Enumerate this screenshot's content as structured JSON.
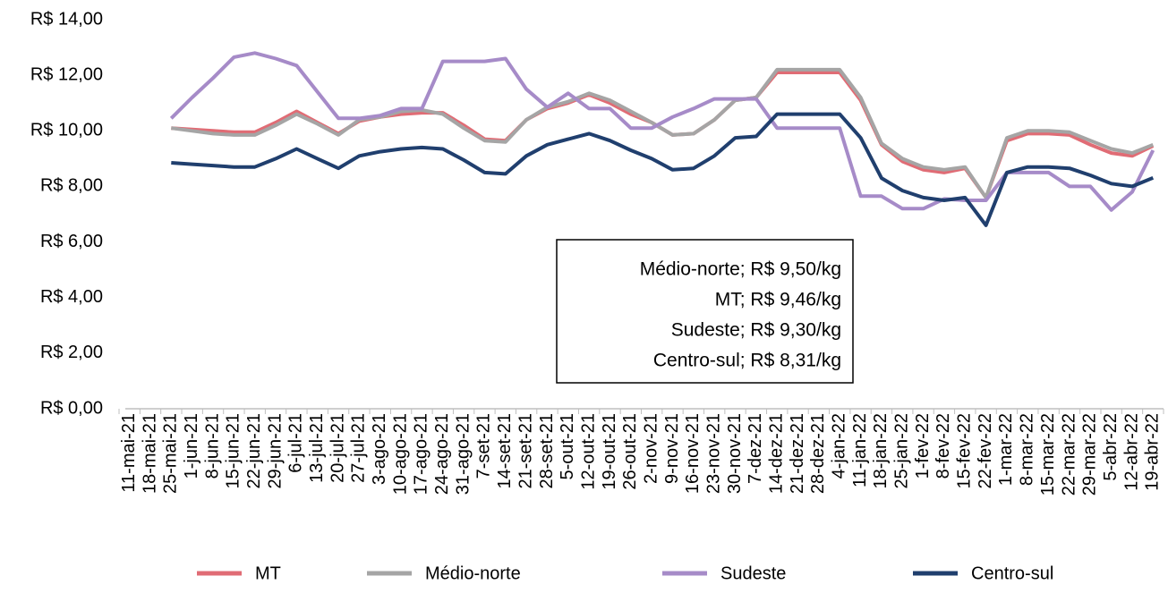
{
  "chart_data": {
    "type": "line",
    "categories": [
      "11-mai-21",
      "18-mai-21",
      "25-mai-21",
      "1-jun-21",
      "8-jun-21",
      "15-jun-21",
      "22-jun-21",
      "29-jun-21",
      "6-jul-21",
      "13-jul-21",
      "20-jul-21",
      "27-jul-21",
      "3-ago-21",
      "10-ago-21",
      "17-ago-21",
      "24-ago-21",
      "31-ago-21",
      "7-set-21",
      "14-set-21",
      "21-set-21",
      "28-set-21",
      "5-out-21",
      "12-out-21",
      "19-out-21",
      "26-out-21",
      "2-nov-21",
      "9-nov-21",
      "16-nov-21",
      "23-nov-21",
      "30-nov-21",
      "7-dez-21",
      "14-dez-21",
      "21-dez-21",
      "28-dez-21",
      "4-jan-22",
      "11-jan-22",
      "18-jan-22",
      "25-jan-22",
      "1-fev-22",
      "8-fev-22",
      "15-fev-22",
      "22-fev-22",
      "1-mar-22",
      "8-mar-22",
      "15-mar-22",
      "22-mar-22",
      "29-mar-22",
      "5-abr-22",
      "12-abr-22",
      "19-abr-22"
    ],
    "series": [
      {
        "name": "MT",
        "color": "#e06c75",
        "values": [
          null,
          null,
          10.1,
          10.05,
          10.0,
          9.95,
          9.95,
          10.3,
          10.7,
          10.3,
          9.9,
          10.35,
          10.5,
          10.6,
          10.65,
          10.65,
          10.2,
          9.7,
          9.65,
          10.4,
          10.8,
          11.0,
          11.3,
          11.0,
          10.6,
          10.3,
          9.85,
          9.9,
          10.4,
          11.1,
          11.2,
          12.1,
          12.1,
          12.1,
          12.1,
          11.1,
          9.5,
          8.9,
          8.6,
          8.5,
          8.65,
          7.6,
          9.65,
          9.9,
          9.9,
          9.85,
          9.5,
          9.2,
          9.1,
          9.46
        ]
      },
      {
        "name": "Médio-norte",
        "color": "#a5a5a5",
        "values": [
          null,
          null,
          10.1,
          10.0,
          9.9,
          9.85,
          9.85,
          10.2,
          10.6,
          10.25,
          9.85,
          10.4,
          10.5,
          10.7,
          10.75,
          10.6,
          10.1,
          9.65,
          9.6,
          10.4,
          10.85,
          11.05,
          11.35,
          11.1,
          10.7,
          10.3,
          9.85,
          9.9,
          10.4,
          11.1,
          11.2,
          12.2,
          12.2,
          12.2,
          12.2,
          11.2,
          9.55,
          9.0,
          8.7,
          8.6,
          8.7,
          7.6,
          9.75,
          10.0,
          10.0,
          9.95,
          9.65,
          9.35,
          9.2,
          9.5
        ]
      },
      {
        "name": "Sudeste",
        "color": "#a68bc8",
        "values": [
          null,
          null,
          10.45,
          11.2,
          11.9,
          12.65,
          12.8,
          12.6,
          12.35,
          11.4,
          10.45,
          10.45,
          10.55,
          10.8,
          10.8,
          12.5,
          12.5,
          12.5,
          12.6,
          11.5,
          10.85,
          11.35,
          10.8,
          10.8,
          10.1,
          10.1,
          10.5,
          10.8,
          11.15,
          11.15,
          11.15,
          10.1,
          10.1,
          10.1,
          10.1,
          7.65,
          7.65,
          7.2,
          7.2,
          7.55,
          7.5,
          7.5,
          8.5,
          8.5,
          8.5,
          8.0,
          8.0,
          7.15,
          7.8,
          9.3
        ]
      },
      {
        "name": "Centro-sul",
        "color": "#203f6e",
        "values": [
          null,
          null,
          8.85,
          8.8,
          8.75,
          8.7,
          8.7,
          9.0,
          9.35,
          9.0,
          8.65,
          9.1,
          9.25,
          9.35,
          9.4,
          9.35,
          8.95,
          8.5,
          8.45,
          9.1,
          9.5,
          9.7,
          9.9,
          9.65,
          9.3,
          9.0,
          8.6,
          8.65,
          9.1,
          9.75,
          9.8,
          10.6,
          10.6,
          10.6,
          10.6,
          9.75,
          8.3,
          7.85,
          7.6,
          7.5,
          7.6,
          6.6,
          8.5,
          8.7,
          8.7,
          8.65,
          8.4,
          8.1,
          8.0,
          8.31
        ]
      }
    ],
    "ylim": [
      0,
      14
    ],
    "yticks": [
      {
        "value": 0,
        "label": "R$ 0,00"
      },
      {
        "value": 2,
        "label": "R$ 2,00"
      },
      {
        "value": 4,
        "label": "R$ 4,00"
      },
      {
        "value": 6,
        "label": "R$ 6,00"
      },
      {
        "value": 8,
        "label": "R$ 8,00"
      },
      {
        "value": 10,
        "label": "R$ 10,00"
      },
      {
        "value": 12,
        "label": "R$ 12,00"
      },
      {
        "value": 14,
        "label": "R$ 14,00"
      }
    ],
    "annotation": [
      "Médio-norte; R$ 9,50/kg",
      "MT; R$ 9,46/kg",
      "Sudeste; R$ 9,30/kg",
      "Centro-sul; R$ 8,31/kg"
    ],
    "legend": "bottom"
  }
}
